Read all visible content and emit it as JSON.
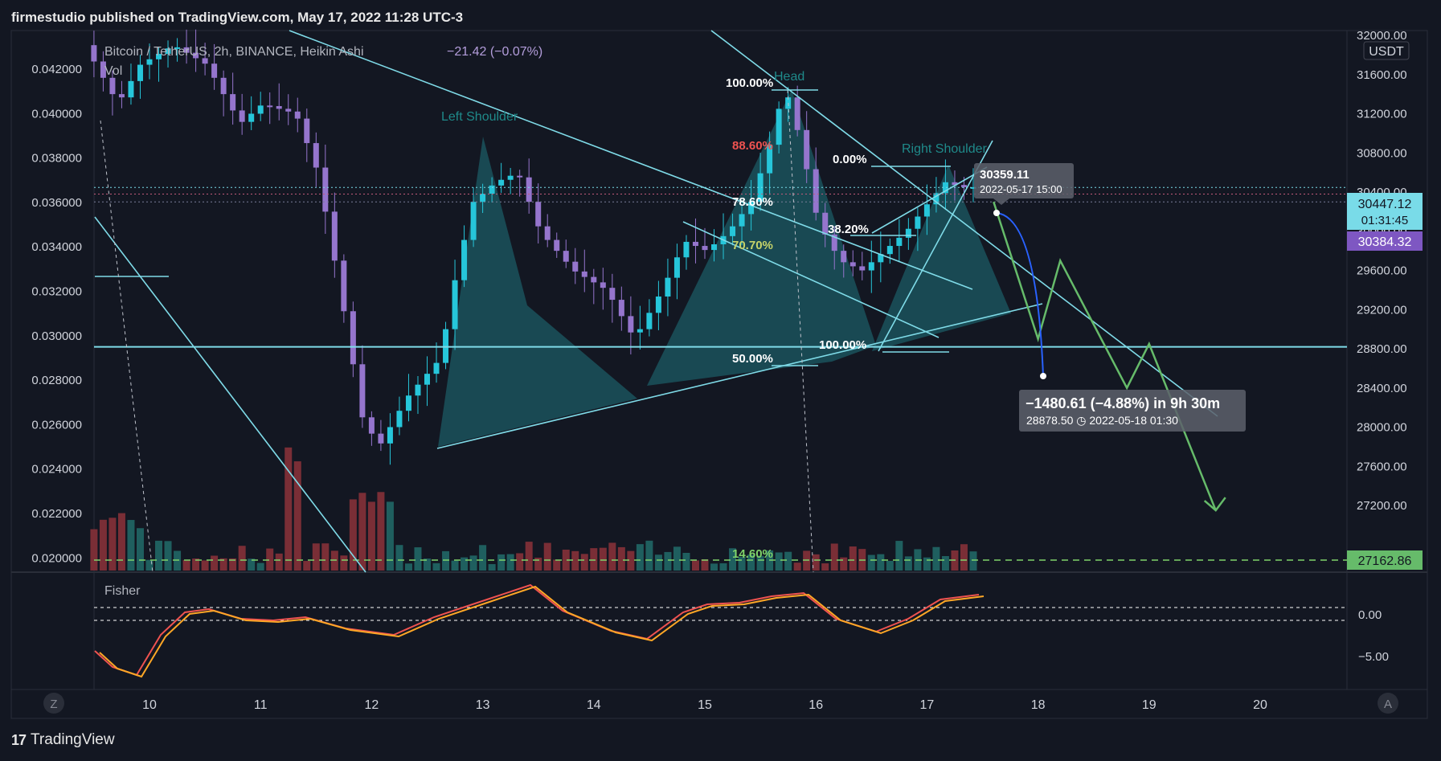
{
  "header": {
    "published": "firmestudio published on TradingView.com, May 17, 2022 11:28 UTC-3"
  },
  "footer": {
    "brand_mark": "17",
    "brand_name": "TradingView"
  },
  "legend": {
    "symbol": "Bitcoin / TetherUS, 2h, BINANCE, Heikin Ashi",
    "change": "−21.42 (−0.07%)",
    "vol": "Vol"
  },
  "indicator": {
    "name": "Fisher",
    "levels": [
      "0.00",
      "−5.00"
    ]
  },
  "axes": {
    "left_ticks": [
      "0.042000",
      "0.040000",
      "0.038000",
      "0.036000",
      "0.034000",
      "0.032000",
      "0.030000",
      "0.028000",
      "0.026000",
      "0.024000",
      "0.022000",
      "0.020000"
    ],
    "right_ticks": [
      "32000.00",
      "31600.00",
      "31200.00",
      "30800.00",
      "30400.00",
      "30000.00",
      "29600.00",
      "29200.00",
      "28800.00",
      "28400.00",
      "28000.00",
      "27600.00",
      "27200.00"
    ],
    "currency": "USDT",
    "x_ticks": [
      "10",
      "11",
      "12",
      "13",
      "14",
      "15",
      "16",
      "17",
      "18",
      "19",
      "20"
    ],
    "left_button": "Z",
    "right_button": "A"
  },
  "price_tags": {
    "last_price": "30447.12",
    "countdown": "01:31:45",
    "prev_price": "30384.32",
    "bottom_price": "27162.86"
  },
  "annotations": {
    "left_shoulder": "Left Shoulder",
    "head": "Head",
    "right_shoulder": "Right Shoulder",
    "fib_levels": [
      "100.00%",
      "88.60%",
      "78.60%",
      "70.70%",
      "50.00%",
      "14.60%"
    ],
    "fib2_levels": [
      "0.00%",
      "38.20%",
      "100.00%"
    ],
    "tooltip_price": "30359.11",
    "tooltip_date": "2022-05-17 15:00",
    "target_main": "−1480.61 (−4.88%) in 9h 30m",
    "target_sub": "28878.50 ◷ 2022-05-18  01:30"
  },
  "chart_data": {
    "type": "candlestick",
    "title": "Bitcoin / TetherUS, 2h, BINANCE, Heikin Ashi",
    "x_labels": [
      "10",
      "11",
      "12",
      "13",
      "14",
      "15",
      "16",
      "17",
      "18",
      "19",
      "20"
    ],
    "y_right_range": [
      27000,
      32000
    ],
    "horizontal_levels": {
      "support": 28820,
      "dashed": 27162.86
    },
    "projection_path": [
      {
        "x": "17.6",
        "y": 30300
      },
      {
        "x": "18.0",
        "y": 28900
      },
      {
        "x": "18.2",
        "y": 29700
      },
      {
        "x": "18.8",
        "y": 28400
      },
      {
        "x": "19.0",
        "y": 28850
      },
      {
        "x": "19.6",
        "y": 27150
      }
    ],
    "series": [
      {
        "name": "Bitcoin / TetherUS",
        "description": "Heikin Ashi candles, rising then falling price around 29000-31600"
      },
      {
        "name": "Vol",
        "description": "Volume bars"
      },
      {
        "name": "Fisher",
        "description": "Fisher transform oscillator"
      }
    ]
  }
}
